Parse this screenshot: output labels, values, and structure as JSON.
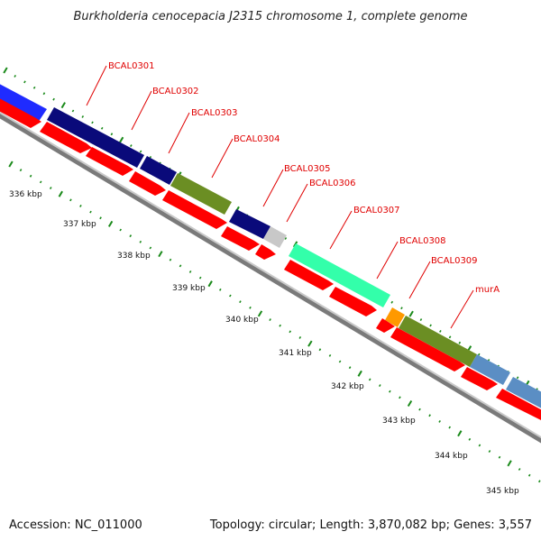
{
  "title": "Burkholderia cenocepacia J2315 chromosome 1, complete genome",
  "accession": "Accession: NC_011000",
  "summary": "Topology: circular; Length: 3,870,082 bp; Genes: 3,557",
  "gene_labels": [
    "BCAL0301",
    "BCAL0302",
    "BCAL0303",
    "BCAL0304",
    "BCAL0305",
    "BCAL0306",
    "BCAL0307",
    "BCAL0308",
    "BCAL0309",
    "murA"
  ],
  "kbp_labels": [
    "336 kbp",
    "337 kbp",
    "338 kbp",
    "339 kbp",
    "340 kbp",
    "341 kbp",
    "342 kbp",
    "343 kbp",
    "344 kbp",
    "345 kbp"
  ],
  "colors": {
    "gene_label": "#e00000",
    "cds_arrow": "#ff0000",
    "backbone": "#888888",
    "tick": "#1a8a1a",
    "blue": "#1f2bff",
    "navy": "#0a0a7a",
    "olive": "#6b8e23",
    "grey": "#c8c8c8",
    "aquamarine": "#33ffaa",
    "orange": "#ff9900",
    "steelblue": "#5b8ec4"
  }
}
